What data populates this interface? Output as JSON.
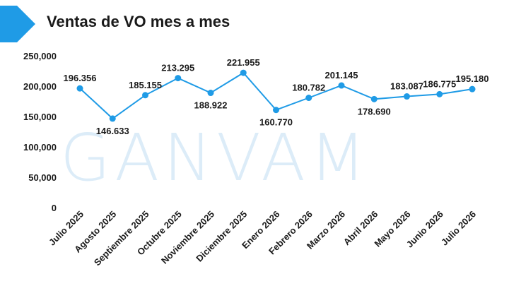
{
  "header": {
    "title": "Ventas de VO mes a mes",
    "accent_color": "#1f9be6"
  },
  "watermark": {
    "text": "GANVAM",
    "color": "#dcecf8"
  },
  "chart_data": {
    "type": "line",
    "title": "Ventas de VO mes a mes",
    "xlabel": "",
    "ylabel": "",
    "categories": [
      "Julio 2025",
      "Agosto 2025",
      "Septiembre 2025",
      "Octubre 2025",
      "Noviembre 2025",
      "Diciembre 2025",
      "Enero 2026",
      "Febrero 2026",
      "Marzo 2026",
      "Abril 2026",
      "Mayo 2026",
      "Junio 2026",
      "Julio 2026"
    ],
    "series": [
      {
        "values": [
          196356,
          146633,
          185155,
          213295,
          188922,
          221955,
          160770,
          180782,
          201145,
          178690,
          183087,
          186775,
          195180
        ],
        "labels": [
          "196.356",
          "146.633",
          "185.155",
          "213.295",
          "188.922",
          "221.955",
          "160.770",
          "180.782",
          "201.145",
          "178.690",
          "183.087",
          "186.775",
          "195.180"
        ],
        "label_position": [
          "above",
          "below",
          "above",
          "above",
          "below",
          "above",
          "below",
          "above",
          "above",
          "below",
          "above",
          "above",
          "above"
        ],
        "color": "#1f9be6"
      }
    ],
    "yticks": [
      "0",
      "50,000",
      "100,000",
      "150,000",
      "200,000",
      "250,000"
    ],
    "ylim": [
      0,
      250000
    ],
    "grid": false,
    "legend": "none"
  }
}
